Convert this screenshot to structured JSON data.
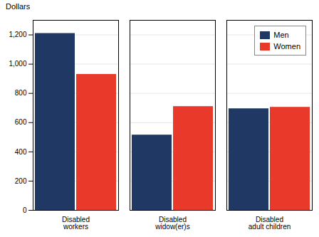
{
  "chart_data": {
    "type": "bar",
    "ylabel": "Dollars",
    "categories": [
      "Disabled\nworkers",
      "Disabled\nwidow(er)s",
      "Disabled\nadult children"
    ],
    "series": [
      {
        "name": "Men",
        "color": "#1f3864",
        "values": [
          1210,
          515,
          695
        ]
      },
      {
        "name": "Women",
        "color": "#e8392a",
        "values": [
          930,
          710,
          705
        ]
      }
    ],
    "ylim": [
      0,
      1300
    ],
    "yticks": [
      0,
      200,
      400,
      600,
      800,
      {
        "value": 1000,
        "label": "1,000"
      },
      {
        "value": 1200,
        "label": "1,200"
      }
    ],
    "grid": true,
    "legend": "upper right"
  }
}
